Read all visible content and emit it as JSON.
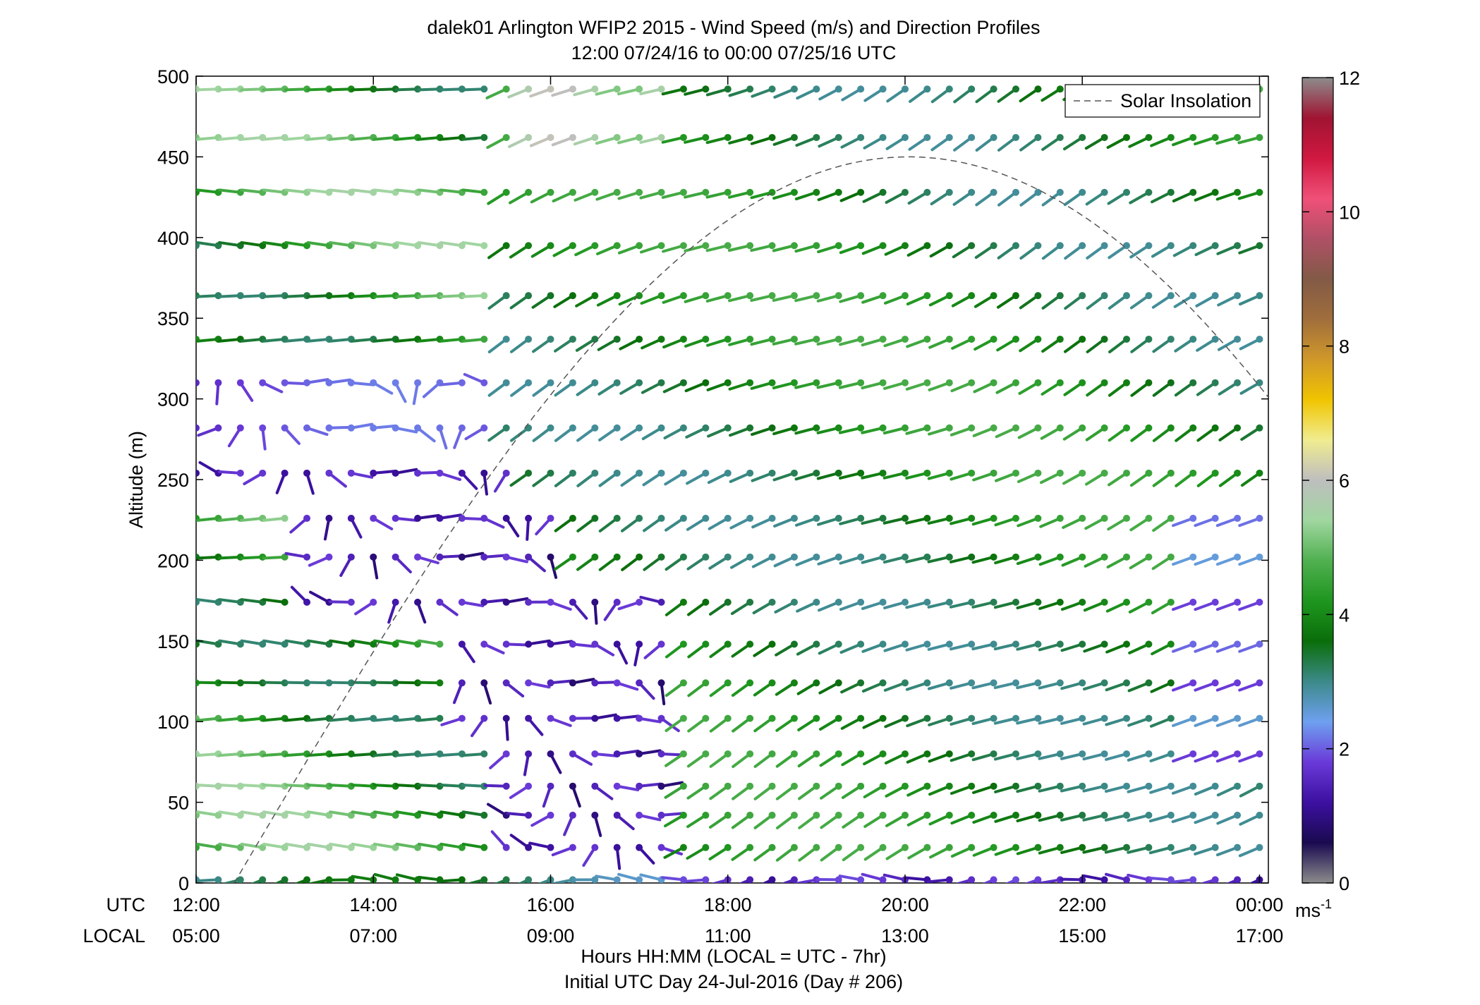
{
  "chart_data": {
    "type": "wind-barb-profile",
    "title_line1": "dalek01 Arlington WFIP2 2015 - Wind Speed (m/s) and Direction Profiles",
    "title_line2": "12:00 07/24/16 to 00:00 07/25/16  UTC",
    "ylabel": "Altitude (m)",
    "xlabel_line1": "Hours HH:MM  (LOCAL = UTC - 7hr)",
    "xlabel_line2": "Initial UTC Day 24-Jul-2016 (Day # 206)",
    "utc_row_label": "UTC",
    "local_row_label": "LOCAL",
    "x_ticks_utc": [
      "12:00",
      "14:00",
      "16:00",
      "18:00",
      "20:00",
      "22:00",
      "00:00"
    ],
    "x_ticks_local": [
      "05:00",
      "07:00",
      "09:00",
      "11:00",
      "13:00",
      "15:00",
      "17:00"
    ],
    "y_ticks": [
      "0",
      "50",
      "100",
      "150",
      "200",
      "250",
      "300",
      "350",
      "400",
      "450",
      "500"
    ],
    "ylim": [
      0,
      500
    ],
    "x_hours_utc": [
      12,
      24.1
    ],
    "altitudes_m": [
      2,
      22,
      42,
      60,
      80,
      102,
      124,
      148,
      174,
      202,
      226,
      254,
      282,
      310,
      337,
      364,
      395,
      428,
      462,
      492
    ],
    "time_step_hours": 0.25,
    "legend": {
      "entry": "Solar Insolation",
      "placement": "top-right",
      "style": "dashed"
    },
    "solar_insolation": {
      "start_hour_utc": 12.43,
      "peak_hour_utc": 20.04,
      "peak_value_m": 450
    },
    "colorbar": {
      "ticks": [
        "0",
        "2",
        "4",
        "6",
        "8",
        "10",
        "12"
      ],
      "range": [
        0,
        12
      ],
      "unit_base": "ms",
      "unit_exp": "-1",
      "stops": [
        "#8c8c8c",
        "#1a0a50",
        "#3c10a0",
        "#6a3ad8",
        "#6ea0f0",
        "#3c8a8a",
        "#0a6e0a",
        "#1e961e",
        "#50b050",
        "#a0d6a0",
        "#bebebe",
        "#f0ec90",
        "#f0c400",
        "#d0982a",
        "#a06e3c",
        "#825a46",
        "#b05066",
        "#f05078",
        "#d01840",
        "#a01432",
        "#8c8c8c"
      ]
    }
  }
}
